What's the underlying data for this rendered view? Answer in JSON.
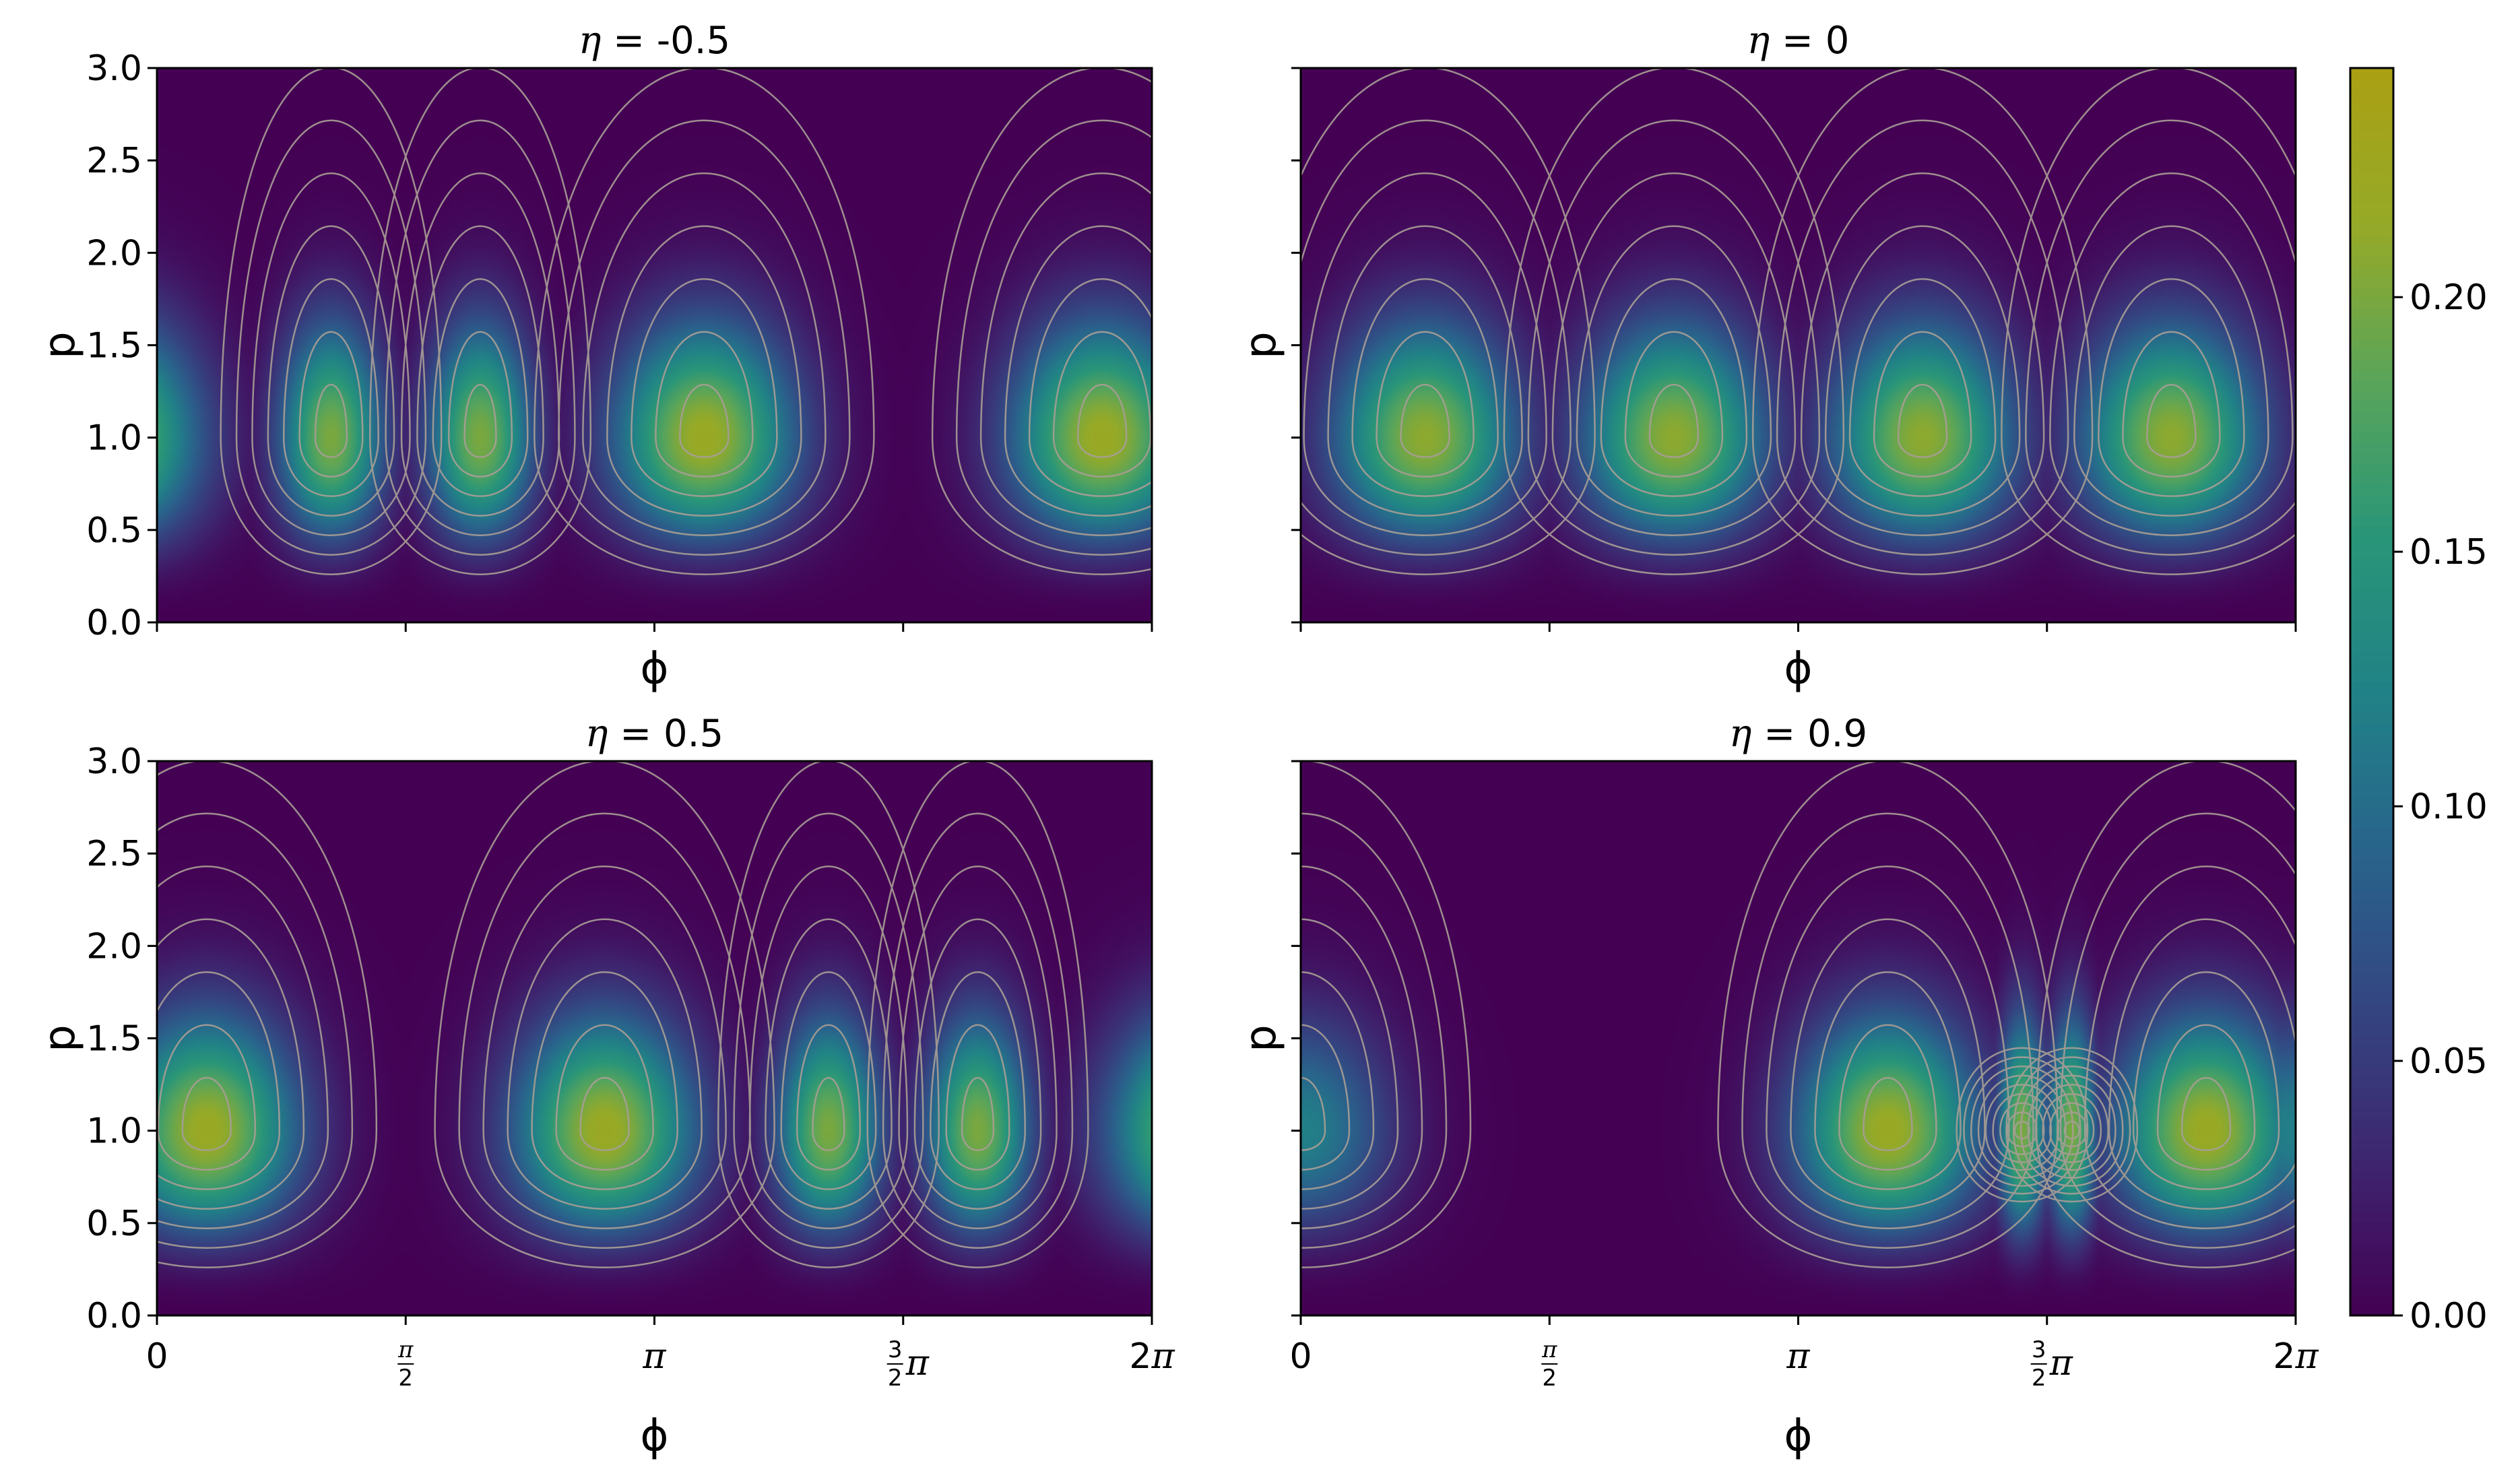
{
  "chart_data": {
    "type": "heatmap",
    "colormap": "viridis",
    "contour_color": "#a89e95",
    "colorbar": {
      "range": [
        0,
        0.245
      ],
      "ticks": [
        "0.00",
        "0.05",
        "0.10",
        "0.15",
        "0.20"
      ],
      "tick_values": [
        0,
        0.05,
        0.1,
        0.15,
        0.2
      ]
    },
    "xlabel": "ϕ",
    "ylabel": "p",
    "xlim_label": [
      "0",
      "2π"
    ],
    "ylim": [
      0,
      3
    ],
    "y_ticks": [
      "0.0",
      "0.5",
      "1.0",
      "1.5",
      "2.0",
      "2.5",
      "3.0"
    ],
    "y_tick_values": [
      0,
      0.5,
      1.0,
      1.5,
      2.0,
      2.5,
      3.0
    ],
    "x_tick_values": [
      0,
      0.5,
      1.0,
      1.5,
      2.0
    ],
    "x_tick_unit": "π",
    "x_ticks": [
      "0",
      "π/2",
      "π",
      "3/2π",
      "2π"
    ],
    "panels": [
      {
        "title_prefix": "η",
        "title_value": " = -0.5",
        "eta": -0.5,
        "peaks": [
          {
            "phi_pi": 0.35,
            "p": 1.0,
            "value": 0.2
          },
          {
            "phi_pi": 0.65,
            "p": 1.0,
            "value": 0.2
          },
          {
            "phi_pi": 1.1,
            "p": 1.0,
            "value": 0.22
          },
          {
            "phi_pi": 1.9,
            "p": 1.0,
            "value": 0.22
          }
        ],
        "show_x_ticklabels": false,
        "show_y_ticklabels": true
      },
      {
        "title_prefix": "η",
        "title_value": " = 0",
        "eta": 0,
        "peaks": [
          {
            "phi_pi": 0.25,
            "p": 1.0,
            "value": 0.21
          },
          {
            "phi_pi": 0.75,
            "p": 1.0,
            "value": 0.21
          },
          {
            "phi_pi": 1.25,
            "p": 1.0,
            "value": 0.21
          },
          {
            "phi_pi": 1.75,
            "p": 1.0,
            "value": 0.21
          }
        ],
        "show_x_ticklabels": false,
        "show_y_ticklabels": false
      },
      {
        "title_prefix": "η",
        "title_value": " = 0.5",
        "eta": 0.5,
        "peaks": [
          {
            "phi_pi": 0.1,
            "p": 1.0,
            "value": 0.22
          },
          {
            "phi_pi": 0.9,
            "p": 1.0,
            "value": 0.22
          },
          {
            "phi_pi": 1.35,
            "p": 1.0,
            "value": 0.2
          },
          {
            "phi_pi": 1.65,
            "p": 1.0,
            "value": 0.2
          }
        ],
        "show_x_ticklabels": true,
        "show_y_ticklabels": true
      },
      {
        "title_prefix": "η",
        "title_value": " = 0.9",
        "eta": 0.9,
        "peaks": [
          {
            "phi_pi": 0.0,
            "p": 1.0,
            "value": 0.12
          },
          {
            "phi_pi": 1.18,
            "p": 1.0,
            "value": 0.22
          },
          {
            "phi_pi": 1.45,
            "p": 1.0,
            "value": 0.2
          },
          {
            "phi_pi": 1.55,
            "p": 1.0,
            "value": 0.2
          },
          {
            "phi_pi": 1.82,
            "p": 1.0,
            "value": 0.22
          }
        ],
        "show_x_ticklabels": true,
        "show_y_ticklabels": false
      }
    ]
  }
}
